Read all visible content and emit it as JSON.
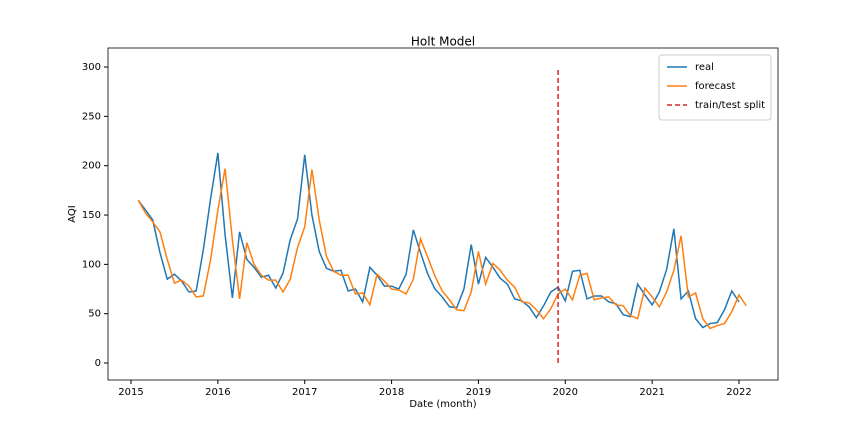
{
  "chart_data": {
    "type": "line",
    "title": "Holt Model",
    "xlabel": "Date (month)",
    "ylabel": "AQI",
    "x": [
      2015.083,
      2015.167,
      2015.25,
      2015.333,
      2015.417,
      2015.5,
      2015.583,
      2015.667,
      2015.75,
      2015.833,
      2015.917,
      2016,
      2016.083,
      2016.167,
      2016.25,
      2016.333,
      2016.417,
      2016.5,
      2016.583,
      2016.667,
      2016.75,
      2016.833,
      2016.917,
      2017,
      2017.083,
      2017.167,
      2017.25,
      2017.333,
      2017.417,
      2017.5,
      2017.583,
      2017.667,
      2017.75,
      2017.833,
      2017.917,
      2018,
      2018.083,
      2018.167,
      2018.25,
      2018.333,
      2018.417,
      2018.5,
      2018.583,
      2018.667,
      2018.75,
      2018.833,
      2018.917,
      2019,
      2019.083,
      2019.167,
      2019.25,
      2019.333,
      2019.417,
      2019.5,
      2019.583,
      2019.667,
      2019.75,
      2019.833,
      2019.917,
      2020,
      2020.083,
      2020.167,
      2020.25,
      2020.333,
      2020.417,
      2020.5,
      2020.583,
      2020.667,
      2020.75,
      2020.833,
      2020.917,
      2021,
      2021.083,
      2021.167,
      2021.25,
      2021.333,
      2021.417,
      2021.5,
      2021.583,
      2021.667,
      2021.75,
      2021.833,
      2021.917,
      2022,
      2022.083
    ],
    "series": [
      {
        "name": "real",
        "color": "#1f77b4",
        "values": [
          165,
          155,
          145,
          112,
          85,
          90,
          83,
          72,
          73,
          115,
          167,
          213,
          130,
          66,
          133,
          105,
          97,
          87,
          89,
          76,
          91,
          125,
          146,
          211,
          150,
          113,
          96,
          93,
          94,
          73,
          75,
          62,
          97,
          89,
          78,
          78,
          75,
          90,
          135,
          112,
          90,
          75,
          67,
          57,
          56,
          75,
          120,
          80,
          107,
          97,
          86,
          80,
          65,
          63,
          57,
          46,
          58,
          72,
          77,
          63,
          93,
          94,
          65,
          68,
          68,
          62,
          60,
          49,
          47,
          80,
          69,
          59,
          72,
          95,
          136,
          65,
          73,
          45,
          36,
          40,
          41,
          54,
          73,
          62,
          null
        ]
      },
      {
        "name": "forecast",
        "color": "#ff7f0e",
        "values": [
          165,
          152,
          143,
          133,
          105,
          81,
          84,
          78,
          67,
          68,
          105,
          155,
          197,
          125,
          65,
          122,
          100,
          89,
          84,
          84,
          72,
          85,
          117,
          138,
          196,
          145,
          108,
          93,
          89,
          89,
          70,
          71,
          59,
          90,
          83,
          75,
          74,
          70,
          85,
          126,
          107,
          88,
          73,
          64,
          54,
          53,
          72,
          113,
          80,
          101,
          94,
          84,
          77,
          62,
          61,
          54,
          45,
          55,
          70,
          75,
          64,
          89,
          91,
          64,
          66,
          67,
          59,
          58,
          48,
          45,
          76,
          67,
          57,
          72,
          94,
          129,
          67,
          71,
          45,
          35,
          38,
          40,
          52,
          69,
          58
        ]
      }
    ],
    "split": {
      "name": "train/test split",
      "color": "#d62728",
      "x": 2019.917,
      "y": [
        0,
        300
      ]
    },
    "xlim": [
      2014.735,
      2022.449
    ],
    "xticks": [
      2015,
      2016,
      2017,
      2018,
      2019,
      2020,
      2021,
      2022
    ],
    "ylim": [
      -17.2,
      319.3
    ],
    "yticks": [
      0,
      50,
      100,
      150,
      200,
      250,
      300
    ],
    "legend": "upper right"
  }
}
